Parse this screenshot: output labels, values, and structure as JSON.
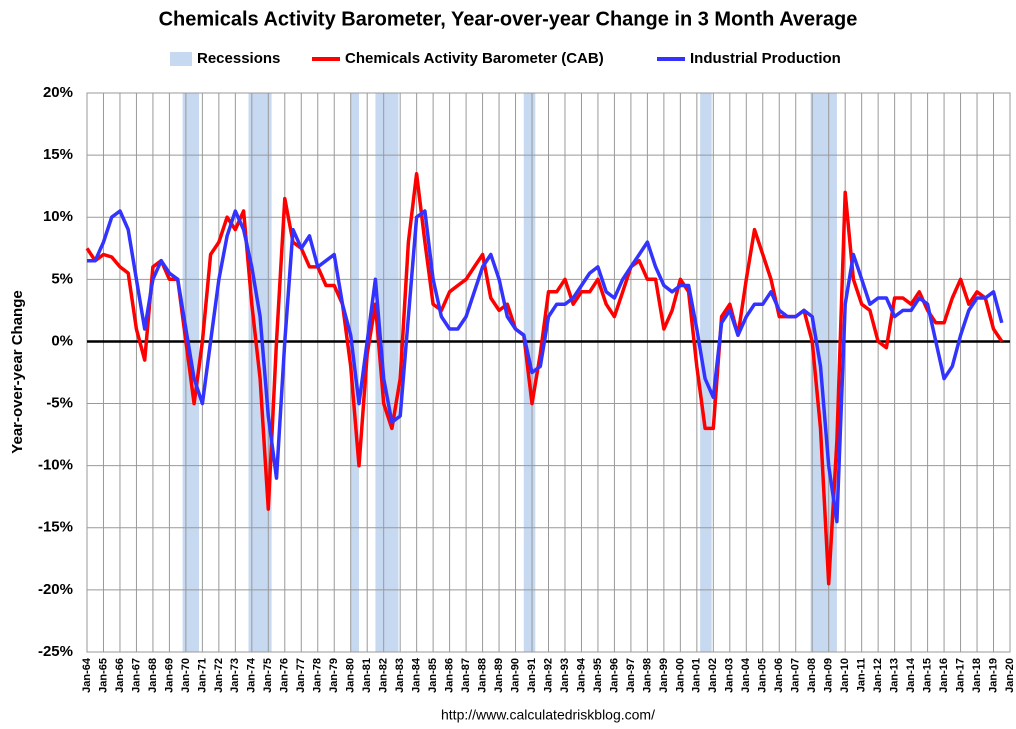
{
  "chart_data": {
    "type": "line",
    "title": "Chemicals Activity Barometer, Year-over-year Change in 3 Month Average",
    "y_label": "Year-over-year Change",
    "source": "http://www.calculatedriskblog.com/",
    "legend": "top",
    "grid": true,
    "recessions": {
      "name": "Recessions",
      "color": "#c6d9f1",
      "periods": [
        [
          1969.8,
          1970.8
        ],
        [
          1973.8,
          1975.2
        ],
        [
          1980.0,
          1980.5
        ],
        [
          1981.5,
          1982.9
        ],
        [
          1990.5,
          1991.2
        ],
        [
          2001.2,
          2001.9
        ],
        [
          2007.9,
          2009.5
        ]
      ]
    },
    "x": [
      1964,
      1964.5,
      1965,
      1965.5,
      1966,
      1966.5,
      1967,
      1967.5,
      1968,
      1968.5,
      1969,
      1969.5,
      1970,
      1970.5,
      1971,
      1971.5,
      1972,
      1972.5,
      1973,
      1973.5,
      1974,
      1974.5,
      1975,
      1975.5,
      1976,
      1976.5,
      1977,
      1977.5,
      1978,
      1978.5,
      1979,
      1979.5,
      1980,
      1980.5,
      1981,
      1981.5,
      1982,
      1982.5,
      1983,
      1983.5,
      1984,
      1984.5,
      1985,
      1985.5,
      1986,
      1986.5,
      1987,
      1987.5,
      1988,
      1988.5,
      1989,
      1989.5,
      1990,
      1990.5,
      1991,
      1991.5,
      1992,
      1992.5,
      1993,
      1993.5,
      1994,
      1994.5,
      1995,
      1995.5,
      1996,
      1996.5,
      1997,
      1997.5,
      1998,
      1998.5,
      1999,
      1999.5,
      2000,
      2000.5,
      2001,
      2001.5,
      2002,
      2002.5,
      2003,
      2003.5,
      2004,
      2004.5,
      2005,
      2005.5,
      2006,
      2006.5,
      2007,
      2007.5,
      2008,
      2008.5,
      2009,
      2009.5,
      2010,
      2010.5,
      2011,
      2011.5,
      2012,
      2012.5,
      2013,
      2013.5,
      2014,
      2014.5,
      2015,
      2015.5,
      2016,
      2016.5,
      2017,
      2017.5,
      2018,
      2018.5,
      2019,
      2019.5
    ],
    "series": [
      {
        "name": "Chemicals Activity Barometer (CAB)",
        "color": "#ff0000",
        "values": [
          7.5,
          6.5,
          7,
          6.8,
          6,
          5.5,
          1,
          -1.5,
          6,
          6.5,
          5,
          5,
          0,
          -5,
          0,
          7,
          8,
          10,
          9,
          10.5,
          3,
          -3,
          -13.5,
          0,
          11.5,
          8,
          7.5,
          6,
          6,
          4.5,
          4.5,
          3,
          -2,
          -10,
          -1,
          3,
          -5,
          -7,
          -3,
          8,
          13.5,
          8,
          3,
          2.5,
          4,
          4.5,
          5,
          6,
          7,
          3.5,
          2.5,
          3,
          1,
          0.5,
          -5,
          -1,
          4,
          4,
          5,
          3,
          4,
          4,
          5,
          3,
          2,
          4,
          6,
          6.5,
          5,
          5,
          1,
          2.5,
          5,
          4,
          -2,
          -7,
          -7,
          2,
          3,
          0.5,
          5,
          9,
          7,
          5,
          2,
          2,
          2,
          2.5,
          0,
          -7,
          -19.5,
          -8,
          12,
          5,
          3,
          2.5,
          0,
          -0.5,
          3.5,
          3.5,
          3,
          4,
          2.5,
          1.5,
          1.5,
          3.5,
          5,
          3,
          4,
          3.5,
          1,
          0
        ]
      },
      {
        "name": "Industrial Production",
        "color": "#3333ff",
        "values": [
          6.5,
          6.5,
          8,
          10,
          10.5,
          9,
          5,
          1,
          5,
          6.5,
          5.5,
          5,
          1,
          -3,
          -5,
          0,
          5,
          8.5,
          10.5,
          9,
          6,
          2,
          -6,
          -11,
          0,
          9,
          7.5,
          8.5,
          6,
          6.5,
          7,
          3,
          0.5,
          -5,
          0,
          5,
          -3,
          -6.5,
          -6,
          2,
          10,
          10.5,
          5,
          2,
          1,
          1,
          2,
          4,
          6,
          7,
          5,
          2,
          1,
          0.5,
          -2.5,
          -2,
          2,
          3,
          3,
          3.5,
          4.5,
          5.5,
          6,
          4,
          3.5,
          5,
          6,
          7,
          8,
          6,
          4.5,
          4,
          4.5,
          4.5,
          1,
          -3,
          -4.5,
          1.5,
          2.5,
          0.5,
          2,
          3,
          3,
          4,
          2.5,
          2,
          2,
          2.5,
          2,
          -2,
          -10,
          -14.5,
          3,
          7,
          5,
          3,
          3.5,
          3.5,
          2,
          2.5,
          2.5,
          3.5,
          3,
          0,
          -3,
          -2,
          0.5,
          2.5,
          3.5,
          3.5,
          4,
          1.5
        ]
      }
    ],
    "xlim": [
      1964,
      2020
    ],
    "xticks": [
      {
        "value": 1964,
        "label": "Jan-64"
      },
      {
        "value": 1965,
        "label": "Jan-65"
      },
      {
        "value": 1966,
        "label": "Jan-66"
      },
      {
        "value": 1967,
        "label": "Jan-67"
      },
      {
        "value": 1968,
        "label": "Jan-68"
      },
      {
        "value": 1969,
        "label": "Jan-69"
      },
      {
        "value": 1970,
        "label": "Jan-70"
      },
      {
        "value": 1971,
        "label": "Jan-71"
      },
      {
        "value": 1972,
        "label": "Jan-72"
      },
      {
        "value": 1973,
        "label": "Jan-73"
      },
      {
        "value": 1974,
        "label": "Jan-74"
      },
      {
        "value": 1975,
        "label": "Jan-75"
      },
      {
        "value": 1976,
        "label": "Jan-76"
      },
      {
        "value": 1977,
        "label": "Jan-77"
      },
      {
        "value": 1978,
        "label": "Jan-78"
      },
      {
        "value": 1979,
        "label": "Jan-79"
      },
      {
        "value": 1980,
        "label": "Jan-80"
      },
      {
        "value": 1981,
        "label": "Jan-81"
      },
      {
        "value": 1982,
        "label": "Jan-82"
      },
      {
        "value": 1983,
        "label": "Jan-83"
      },
      {
        "value": 1984,
        "label": "Jan-84"
      },
      {
        "value": 1985,
        "label": "Jan-85"
      },
      {
        "value": 1986,
        "label": "Jan-86"
      },
      {
        "value": 1987,
        "label": "Jan-87"
      },
      {
        "value": 1988,
        "label": "Jan-88"
      },
      {
        "value": 1989,
        "label": "Jan-89"
      },
      {
        "value": 1990,
        "label": "Jan-90"
      },
      {
        "value": 1991,
        "label": "Jan-91"
      },
      {
        "value": 1992,
        "label": "Jan-92"
      },
      {
        "value": 1993,
        "label": "Jan-93"
      },
      {
        "value": 1994,
        "label": "Jan-94"
      },
      {
        "value": 1995,
        "label": "Jan-95"
      },
      {
        "value": 1996,
        "label": "Jan-96"
      },
      {
        "value": 1997,
        "label": "Jan-97"
      },
      {
        "value": 1998,
        "label": "Jan-98"
      },
      {
        "value": 1999,
        "label": "Jan-99"
      },
      {
        "value": 2000,
        "label": "Jan-00"
      },
      {
        "value": 2001,
        "label": "Jan-01"
      },
      {
        "value": 2002,
        "label": "Jan-02"
      },
      {
        "value": 2003,
        "label": "Jan-03"
      },
      {
        "value": 2004,
        "label": "Jan-04"
      },
      {
        "value": 2005,
        "label": "Jan-05"
      },
      {
        "value": 2006,
        "label": "Jan-06"
      },
      {
        "value": 2007,
        "label": "Jan-07"
      },
      {
        "value": 2008,
        "label": "Jan-08"
      },
      {
        "value": 2009,
        "label": "Jan-09"
      },
      {
        "value": 2010,
        "label": "Jan-10"
      },
      {
        "value": 2011,
        "label": "Jan-11"
      },
      {
        "value": 2012,
        "label": "Jan-12"
      },
      {
        "value": 2013,
        "label": "Jan-13"
      },
      {
        "value": 2014,
        "label": "Jan-14"
      },
      {
        "value": 2015,
        "label": "Jan-15"
      },
      {
        "value": 2016,
        "label": "Jan-16"
      },
      {
        "value": 2017,
        "label": "Jan-17"
      },
      {
        "value": 2018,
        "label": "Jan-18"
      },
      {
        "value": 2019,
        "label": "Jan-19"
      },
      {
        "value": 2020,
        "label": "Jan-20"
      }
    ],
    "ylim": [
      -25,
      20
    ],
    "yticks": [
      {
        "value": -25,
        "label": "-25%"
      },
      {
        "value": -20,
        "label": "-20%"
      },
      {
        "value": -15,
        "label": "-15%"
      },
      {
        "value": -10,
        "label": "-10%"
      },
      {
        "value": -5,
        "label": "-5%"
      },
      {
        "value": 0,
        "label": "0%"
      },
      {
        "value": 5,
        "label": "5%"
      },
      {
        "value": 10,
        "label": "10%"
      },
      {
        "value": 15,
        "label": "15%"
      },
      {
        "value": 20,
        "label": "20%"
      }
    ]
  }
}
